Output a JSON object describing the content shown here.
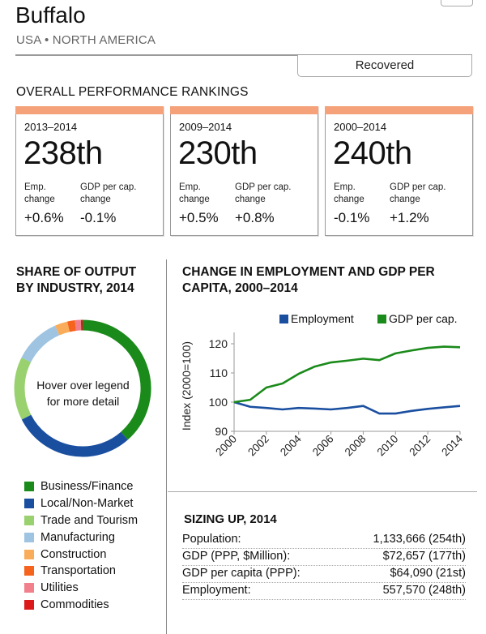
{
  "header": {
    "city": "Buffalo",
    "region": "USA • NORTH AMERICA",
    "status_button": "Recovered"
  },
  "rankings": {
    "title": "OVERALL PERFORMANCE RANKINGS",
    "accent_color": "#f5a27b",
    "cards": [
      {
        "period": "2013–2014",
        "rank": "238th",
        "emp_label": "Emp.\nchange",
        "gdp_label": "GDP per cap.\nchange",
        "emp_value": "+0.6%",
        "gdp_value": "-0.1%"
      },
      {
        "period": "2009–2014",
        "rank": "230th",
        "emp_label": "Emp.\nchange",
        "gdp_label": "GDP per cap.\nchange",
        "emp_value": "+0.5%",
        "gdp_value": "+0.8%"
      },
      {
        "period": "2000–2014",
        "rank": "240th",
        "emp_label": "Emp.\nchange",
        "gdp_label": "GDP per cap.\nchange",
        "emp_value": "-0.1%",
        "gdp_value": "+1.2%"
      }
    ]
  },
  "share": {
    "title_line1": "SHARE OF OUTPUT",
    "title_line2": "BY INDUSTRY, 2014",
    "hint_line1": "Hover over legend",
    "hint_line2": "for more detail"
  },
  "employment_chart": {
    "title_line1": "CHANGE IN EMPLOYMENT AND GDP PER",
    "title_line2": "CAPITA, 2000–2014"
  },
  "sizing": {
    "title": "SIZING UP, 2014",
    "rows": [
      {
        "label": "Population:",
        "value": "1,133,666 (254th)"
      },
      {
        "label": "GDP (PPP, $Million):",
        "value": "$72,657 (177th)"
      },
      {
        "label": "GDP per capita (PPP):",
        "value": "$64,090 (21st)"
      },
      {
        "label": "Employment:",
        "value": "557,570 (248th)"
      }
    ]
  },
  "chart_data": [
    {
      "type": "pie",
      "title": "SHARE OF OUTPUT BY INDUSTRY, 2014",
      "donut": true,
      "categories": [
        "Business/Finance",
        "Local/Non-Market",
        "Trade and Tourism",
        "Manufacturing",
        "Construction",
        "Transportation",
        "Utilities",
        "Commodities"
      ],
      "values": [
        38.6,
        29.0,
        15.0,
        11.0,
        3.0,
        1.8,
        1.4,
        0.4
      ],
      "colors": [
        "#1a8a1a",
        "#1a4fa0",
        "#99d16f",
        "#9ec4e2",
        "#f9ad5a",
        "#f5631c",
        "#f17f8c",
        "#dc1a1a"
      ],
      "legend_position": "bottom"
    },
    {
      "type": "line",
      "title": "CHANGE IN EMPLOYMENT AND GDP PER CAPITA, 2000–2014",
      "xlabel": "",
      "ylabel": "Index (2000=100)",
      "x": [
        2000,
        2001,
        2002,
        2003,
        2004,
        2005,
        2006,
        2007,
        2008,
        2009,
        2010,
        2011,
        2012,
        2013,
        2014
      ],
      "xticks": [
        "2000",
        "2002",
        "2004",
        "2006",
        "2008",
        "2010",
        "2012",
        "2014"
      ],
      "yticks": [
        "90",
        "100",
        "110",
        "120"
      ],
      "ylim": [
        90,
        120
      ],
      "xlim": [
        2000,
        2014
      ],
      "grid": false,
      "legend_position": "top-right",
      "series": [
        {
          "name": "Employment",
          "color": "#1a4fa0",
          "values": [
            100,
            98.4,
            98.0,
            97.5,
            98.0,
            97.8,
            97.5,
            98.0,
            98.7,
            96.1,
            96.1,
            97.0,
            97.7,
            98.2,
            98.7
          ]
        },
        {
          "name": "GDP per cap.",
          "color": "#1a8a1a",
          "values": [
            100,
            100.8,
            105.0,
            106.4,
            109.7,
            112.2,
            113.6,
            114.2,
            114.9,
            114.4,
            116.7,
            117.7,
            118.6,
            119.0,
            118.8
          ]
        }
      ]
    }
  ]
}
